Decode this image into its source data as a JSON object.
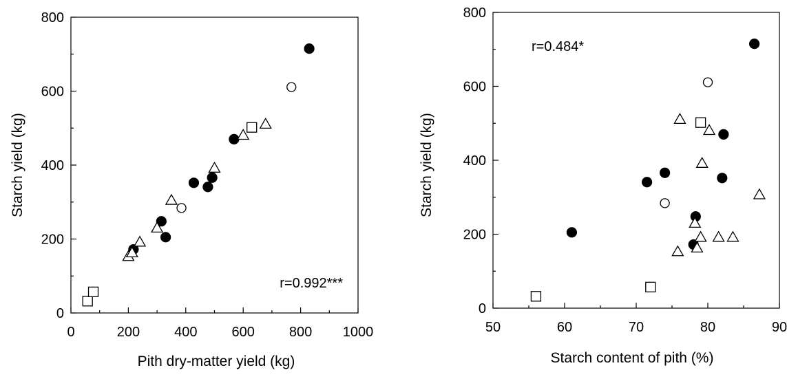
{
  "figure": {
    "panels": [
      "left",
      "right"
    ]
  },
  "chart_data": [
    {
      "type": "scatter",
      "title": "",
      "xlabel": "Pith dry-matter yield (kg)",
      "ylabel": "Starch yield (kg)",
      "xlim": [
        0,
        1000
      ],
      "ylim": [
        0,
        800
      ],
      "xticks": [
        0,
        200,
        400,
        600,
        800,
        1000
      ],
      "yticks": [
        0,
        200,
        400,
        600,
        800
      ],
      "annotation": "r=0.992***",
      "grid": false,
      "legend": "none",
      "series": [
        {
          "marker": "filled-circle",
          "points": [
            [
              218,
              172
            ],
            [
              315,
              248
            ],
            [
              330,
              205
            ],
            [
              428,
              352
            ],
            [
              477,
              341
            ],
            [
              492,
              366
            ],
            [
              568,
              470
            ],
            [
              830,
              715
            ]
          ]
        },
        {
          "marker": "open-circle",
          "points": [
            [
              385,
              284
            ],
            [
              768,
              611
            ]
          ]
        },
        {
          "marker": "open-triangle",
          "points": [
            [
              200,
              153
            ],
            [
              213,
              163
            ],
            [
              240,
              192
            ],
            [
              300,
              230
            ],
            [
              350,
              305
            ],
            [
              500,
              392
            ],
            [
              600,
              481
            ],
            [
              678,
              511
            ]
          ]
        },
        {
          "marker": "open-square",
          "points": [
            [
              58,
              32
            ],
            [
              78,
              57
            ],
            [
              630,
              502
            ]
          ]
        }
      ]
    },
    {
      "type": "scatter",
      "title": "",
      "xlabel": "Starch content of pith (%)",
      "ylabel": "Starch yield (kg)",
      "xlim": [
        50,
        90
      ],
      "ylim": [
        0,
        800
      ],
      "xticks": [
        50,
        60,
        70,
        80,
        90
      ],
      "yticks": [
        0,
        200,
        400,
        600,
        800
      ],
      "annotation": "r=0.484*",
      "grid": false,
      "legend": "none",
      "series": [
        {
          "marker": "filled-circle",
          "points": [
            [
              61,
              205
            ],
            [
              71.5,
              341
            ],
            [
              74,
              366
            ],
            [
              78,
              172
            ],
            [
              78.3,
              248
            ],
            [
              82,
              352
            ],
            [
              82.2,
              470
            ],
            [
              86.5,
              715
            ]
          ]
        },
        {
          "marker": "open-circle",
          "points": [
            [
              74,
              284
            ],
            [
              80,
              611
            ]
          ]
        },
        {
          "marker": "open-triangle",
          "points": [
            [
              75.8,
              153
            ],
            [
              76.1,
              511
            ],
            [
              78.2,
              230
            ],
            [
              78.5,
              163
            ],
            [
              79,
              192
            ],
            [
              79.2,
              392
            ],
            [
              80.2,
              481
            ],
            [
              81.5,
              192
            ],
            [
              83.5,
              192
            ],
            [
              87.2,
              307
            ]
          ]
        },
        {
          "marker": "open-square",
          "points": [
            [
              56,
              32
            ],
            [
              72,
              57
            ],
            [
              79,
              502
            ]
          ]
        }
      ]
    }
  ]
}
